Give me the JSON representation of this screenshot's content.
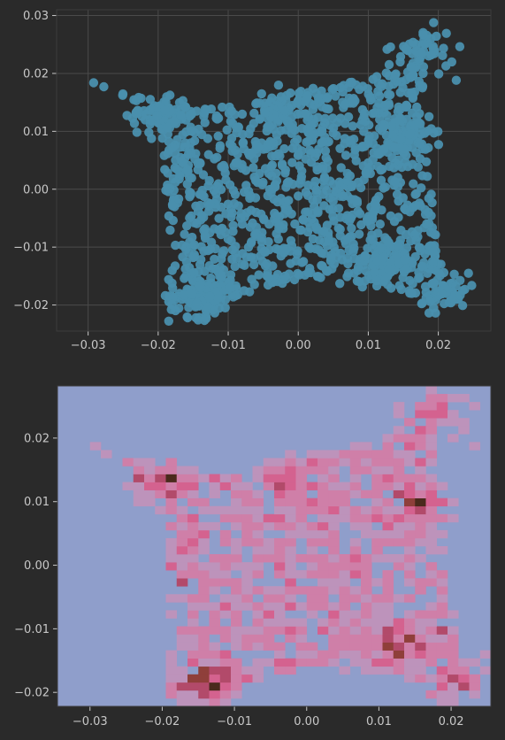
{
  "chart_data": [
    {
      "type": "scatter",
      "title": "",
      "xlabel": "",
      "ylabel": "",
      "xlim": [
        -0.0345,
        0.0275
      ],
      "ylim": [
        -0.0245,
        0.031
      ],
      "xticks": [
        -0.03,
        -0.02,
        -0.01,
        0.0,
        0.01,
        0.02
      ],
      "xtick_labels": [
        "−0.03",
        "−0.02",
        "−0.01",
        "0.00",
        "0.01",
        "0.02"
      ],
      "yticks": [
        -0.02,
        -0.01,
        0.0,
        0.01,
        0.02,
        0.03
      ],
      "ytick_labels": [
        "−0.02",
        "−0.01",
        "0.00",
        "0.01",
        "0.02",
        "0.03"
      ],
      "grid": true,
      "marker_color": "#4a8fad",
      "background": "#2a2a2a",
      "approx_point_count": 1500,
      "shape_outline_points": [
        [
          -0.032,
          0.02
        ],
        [
          -0.022,
          0.015
        ],
        [
          -0.012,
          0.014
        ],
        [
          0.0,
          0.017
        ],
        [
          0.01,
          0.019
        ],
        [
          0.014,
          0.023
        ],
        [
          0.019,
          0.0285
        ],
        [
          0.018,
          0.017
        ],
        [
          0.019,
          0.0
        ],
        [
          0.02,
          -0.012
        ],
        [
          0.025,
          -0.0215
        ],
        [
          0.016,
          -0.018
        ],
        [
          0.005,
          -0.015
        ],
        [
          -0.005,
          -0.017
        ],
        [
          -0.016,
          -0.0215
        ],
        [
          -0.018,
          -0.015
        ],
        [
          -0.019,
          0.0
        ],
        [
          -0.02,
          0.013
        ]
      ],
      "dense_regions": [
        {
          "x": -0.014,
          "y": -0.0185,
          "weight": 3
        },
        {
          "x": 0.013,
          "y": -0.0125,
          "weight": 2
        },
        {
          "x": 0.015,
          "y": 0.01,
          "weight": 2
        },
        {
          "x": -0.02,
          "y": 0.013,
          "weight": 2
        },
        {
          "x": 0.018,
          "y": 0.024,
          "weight": 1
        },
        {
          "x": -0.002,
          "y": 0.014,
          "weight": 1
        },
        {
          "x": 0.021,
          "y": -0.019,
          "weight": 1
        }
      ]
    },
    {
      "type": "heatmap",
      "title": "",
      "xlabel": "",
      "ylabel": "",
      "xlim": [
        -0.0345,
        0.0255
      ],
      "ylim": [
        -0.0222,
        0.0282
      ],
      "bins": [
        40,
        40
      ],
      "xticks": [
        -0.03,
        -0.02,
        -0.01,
        0.0,
        0.01,
        0.02
      ],
      "xtick_labels": [
        "−0.03",
        "−0.02",
        "−0.01",
        "0.00",
        "0.01",
        "0.02"
      ],
      "yticks": [
        -0.02,
        -0.01,
        0.0,
        0.01,
        0.02
      ],
      "ytick_labels": [
        "−0.02",
        "−0.01",
        "0.00",
        "0.01",
        "0.02"
      ],
      "grid": false,
      "colormap": [
        "#8f9ecb",
        "#a19bc8",
        "#bd93bb",
        "#cf7fa8",
        "#d4628f",
        "#b24a6a",
        "#8f3f3a",
        "#4a2a1c"
      ],
      "empty_color": "#8f9ecb"
    }
  ]
}
